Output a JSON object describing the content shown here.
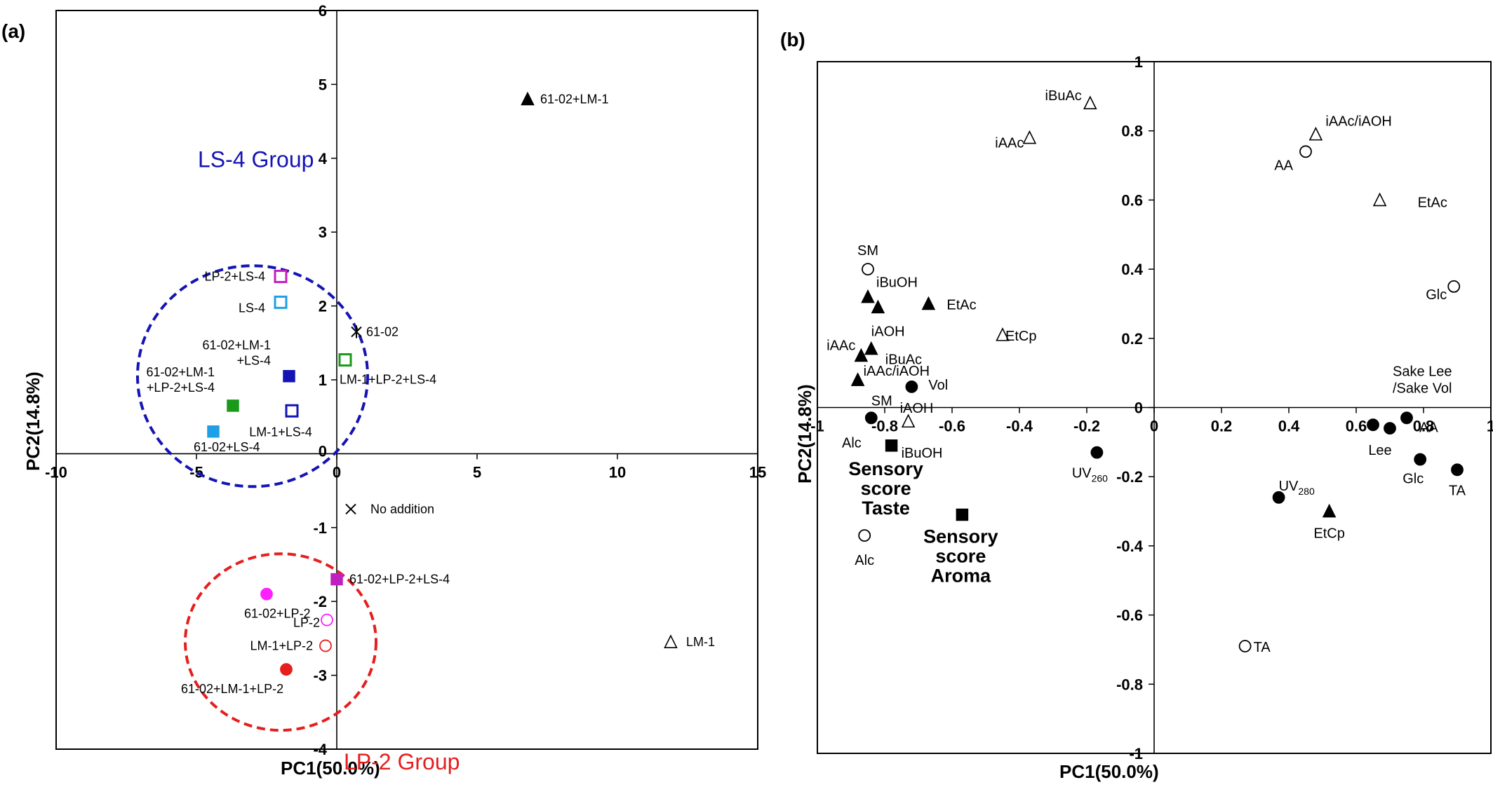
{
  "chart_data": [
    {
      "type": "scatter",
      "panel_label": "(a)",
      "xlabel": "PC1(50.0%)",
      "ylabel": "PC2(14.8%)",
      "xlim": [
        -10,
        15
      ],
      "ylim": [
        -4,
        6
      ],
      "xticks": [
        -10,
        -5,
        0,
        5,
        10,
        15
      ],
      "yticks": [
        -4,
        -3,
        -2,
        -1,
        0,
        1,
        2,
        3,
        4,
        5,
        6
      ],
      "grid": false,
      "groups": [
        {
          "name": "LS-4 Group",
          "color": "#1414b4",
          "center": [
            -3.0,
            1.05
          ],
          "radius": [
            8.2,
            1.4
          ]
        },
        {
          "name": "LP-2 Group",
          "color": "#e61e1e",
          "center": [
            -2.0,
            -2.55
          ],
          "radius": [
            6.8,
            1.1
          ]
        }
      ],
      "points": [
        {
          "label": "61-02+LM-1",
          "x": 6.8,
          "y": 4.8,
          "marker": "triangle-filled",
          "color": "#000000"
        },
        {
          "label": "LP-2+LS-4",
          "x": -2.0,
          "y": 2.4,
          "marker": "square-open",
          "color": "#c020c0"
        },
        {
          "label": "LS-4",
          "x": -2.0,
          "y": 2.05,
          "marker": "square-open",
          "color": "#1ea0e6"
        },
        {
          "label": "61-02",
          "x": 0.7,
          "y": 1.65,
          "marker": "star",
          "color": "#000000"
        },
        {
          "label": "61-02+LM-1\n+LS-4",
          "x": -1.7,
          "y": 1.05,
          "marker": "square-filled",
          "color": "#1414b4"
        },
        {
          "label": "LM-1+LP-2+LS-4",
          "x": 0.3,
          "y": 1.27,
          "marker": "square-open",
          "color": "#1a9a1a"
        },
        {
          "label": "61-02+LM-1\n+LP-2+LS-4",
          "x": -3.7,
          "y": 0.65,
          "marker": "square-filled",
          "color": "#1a9a1a"
        },
        {
          "label": "LM-1+LS-4",
          "x": -1.6,
          "y": 0.58,
          "marker": "square-open",
          "color": "#1414b4"
        },
        {
          "label": "61-02+LS-4",
          "x": -4.4,
          "y": 0.3,
          "marker": "square-filled",
          "color": "#1ea0e6"
        },
        {
          "label": "No addition",
          "x": 0.5,
          "y": -0.75,
          "marker": "x",
          "color": "#000000"
        },
        {
          "label": "61-02+LP-2+LS-4",
          "x": 0.0,
          "y": -1.7,
          "marker": "square-filled",
          "color": "#c020c0"
        },
        {
          "label": "61-02+LP-2",
          "x": -2.5,
          "y": -1.9,
          "marker": "circle-filled",
          "color": "#ff20ff"
        },
        {
          "label": "LP-2",
          "x": -0.35,
          "y": -2.25,
          "marker": "circle-open",
          "color": "#ff20ff"
        },
        {
          "label": "LM-1+LP-2",
          "x": -0.4,
          "y": -2.6,
          "marker": "circle-open",
          "color": "#e61e1e"
        },
        {
          "label": "61-02+LM-1+LP-2",
          "x": -1.8,
          "y": -2.92,
          "marker": "circle-filled",
          "color": "#e61e1e"
        },
        {
          "label": "LM-1",
          "x": 11.9,
          "y": -2.55,
          "marker": "triangle-open",
          "color": "#000000"
        }
      ]
    },
    {
      "type": "scatter",
      "panel_label": "(b)",
      "xlabel": "PC1(50.0%)",
      "ylabel": "PC2(14.8%)",
      "xlim": [
        -1,
        1
      ],
      "ylim": [
        -1,
        1
      ],
      "xticks": [
        -1,
        -0.8,
        -0.6,
        -0.4,
        -0.2,
        0,
        0.2,
        0.4,
        0.6,
        0.8,
        1
      ],
      "yticks": [
        -1,
        -0.8,
        -0.6,
        -0.4,
        -0.2,
        0,
        0.2,
        0.4,
        0.6,
        0.8,
        1
      ],
      "grid": false,
      "points": [
        {
          "label": "iBuAc",
          "x": -0.19,
          "y": 0.88,
          "marker": "triangle-open"
        },
        {
          "label": "iAAc",
          "x": -0.37,
          "y": 0.78,
          "marker": "triangle-open"
        },
        {
          "label": "iAAc/iAOH",
          "x": 0.48,
          "y": 0.79,
          "marker": "triangle-open"
        },
        {
          "label": "AA",
          "x": 0.45,
          "y": 0.74,
          "marker": "circle-open"
        },
        {
          "label": "EtAc",
          "x": 0.67,
          "y": 0.6,
          "marker": "triangle-open"
        },
        {
          "label": "SM",
          "x": -0.85,
          "y": 0.4,
          "marker": "circle-open"
        },
        {
          "label": "Glc",
          "x": 0.89,
          "y": 0.35,
          "marker": "circle-open"
        },
        {
          "label": "iBuOH",
          "x": -0.85,
          "y": 0.32,
          "marker": "triangle-filled"
        },
        {
          "label": "",
          "x": -0.82,
          "y": 0.29,
          "marker": "triangle-filled"
        },
        {
          "label": "EtAc",
          "x": -0.67,
          "y": 0.3,
          "marker": "triangle-filled"
        },
        {
          "label": "EtCp",
          "x": -0.45,
          "y": 0.21,
          "marker": "triangle-open"
        },
        {
          "label": "iAOH",
          "x": -0.84,
          "y": 0.17,
          "marker": "triangle-filled"
        },
        {
          "label": "iBuAc",
          "x": -0.84,
          "y": 0.17,
          "marker": "none"
        },
        {
          "label": "iAAc",
          "x": -0.87,
          "y": 0.15,
          "marker": "triangle-filled"
        },
        {
          "label": "iAAc/iAOH",
          "x": -0.88,
          "y": 0.08,
          "marker": "triangle-filled"
        },
        {
          "label": "Vol",
          "x": -0.72,
          "y": 0.06,
          "marker": "circle-filled"
        },
        {
          "label": "Sake Lee\n/Sake Vol",
          "x": 0.75,
          "y": -0.03,
          "marker": "circle-filled"
        },
        {
          "label": "AA",
          "x": 0.75,
          "y": -0.03,
          "marker": "none"
        },
        {
          "label": "SM",
          "x": -0.84,
          "y": -0.03,
          "marker": "circle-filled"
        },
        {
          "label": "iAOH",
          "x": -0.73,
          "y": -0.04,
          "marker": "triangle-open"
        },
        {
          "label": "Alc",
          "x": -0.84,
          "y": -0.03,
          "marker": "none"
        },
        {
          "label": "iBuOH",
          "x": -0.73,
          "y": -0.04,
          "marker": "none"
        },
        {
          "label": "",
          "x": 0.65,
          "y": -0.05,
          "marker": "circle-filled"
        },
        {
          "label": "Lee",
          "x": 0.7,
          "y": -0.06,
          "marker": "circle-filled"
        },
        {
          "label": "Sensory\nscore\nTaste",
          "x": -0.78,
          "y": -0.11,
          "marker": "square-filled"
        },
        {
          "label": "UV260",
          "x": -0.17,
          "y": -0.13,
          "marker": "circle-filled"
        },
        {
          "label": "Glc",
          "x": 0.79,
          "y": -0.15,
          "marker": "circle-filled"
        },
        {
          "label": "TA",
          "x": 0.9,
          "y": -0.18,
          "marker": "circle-filled"
        },
        {
          "label": "UV280",
          "x": 0.37,
          "y": -0.26,
          "marker": "circle-filled"
        },
        {
          "label": "EtCp",
          "x": 0.52,
          "y": -0.3,
          "marker": "triangle-filled"
        },
        {
          "label": "Sensory\nscore\nAroma",
          "x": -0.57,
          "y": -0.31,
          "marker": "square-filled"
        },
        {
          "label": "Alc",
          "x": -0.86,
          "y": -0.37,
          "marker": "circle-open"
        },
        {
          "label": "TA",
          "x": 0.27,
          "y": -0.69,
          "marker": "circle-open"
        }
      ]
    }
  ]
}
